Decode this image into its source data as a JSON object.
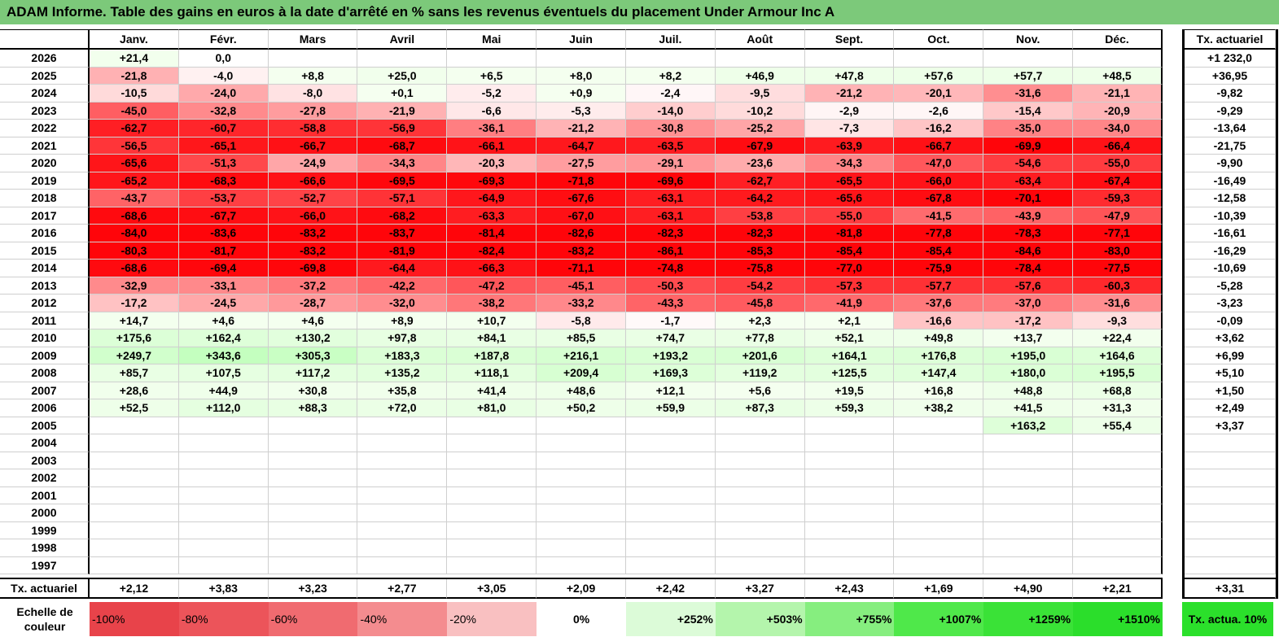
{
  "title": "ADAM Informe. Table des gains en euros à la date d'arrêté en % sans les revenus éventuels du placement Under Armour Inc A",
  "months": [
    "Janv.",
    "Févr.",
    "Mars",
    "Avril",
    "Mai",
    "Juin",
    "Juil.",
    "Août",
    "Sept.",
    "Oct.",
    "Nov.",
    "Déc."
  ],
  "tx_header": "Tx. actuariel",
  "rows": [
    {
      "year": "2026",
      "values": [
        "+21,4",
        "0,0",
        "",
        "",
        "",
        "",
        "",
        "",
        "",
        "",
        "",
        ""
      ],
      "tx": "+1 232,0"
    },
    {
      "year": "2025",
      "values": [
        "-21,8",
        "-4,0",
        "+8,8",
        "+25,0",
        "+6,5",
        "+8,0",
        "+8,2",
        "+46,9",
        "+47,8",
        "+57,6",
        "+57,7",
        "+48,5"
      ],
      "tx": "+36,95"
    },
    {
      "year": "2024",
      "values": [
        "-10,5",
        "-24,0",
        "-8,0",
        "+0,1",
        "-5,2",
        "+0,9",
        "-2,4",
        "-9,5",
        "-21,2",
        "-20,1",
        "-31,6",
        "-21,1"
      ],
      "tx": "-9,82"
    },
    {
      "year": "2023",
      "values": [
        "-45,0",
        "-32,8",
        "-27,8",
        "-21,9",
        "-6,6",
        "-5,3",
        "-14,0",
        "-10,2",
        "-2,9",
        "-2,6",
        "-15,4",
        "-20,9"
      ],
      "tx": "-9,29"
    },
    {
      "year": "2022",
      "values": [
        "-62,7",
        "-60,7",
        "-58,8",
        "-56,9",
        "-36,1",
        "-21,2",
        "-30,8",
        "-25,2",
        "-7,3",
        "-16,2",
        "-35,0",
        "-34,0"
      ],
      "tx": "-13,64"
    },
    {
      "year": "2021",
      "values": [
        "-56,5",
        "-65,1",
        "-66,7",
        "-68,7",
        "-66,1",
        "-64,7",
        "-63,5",
        "-67,9",
        "-63,9",
        "-66,7",
        "-69,9",
        "-66,4"
      ],
      "tx": "-21,75"
    },
    {
      "year": "2020",
      "values": [
        "-65,6",
        "-51,3",
        "-24,9",
        "-34,3",
        "-20,3",
        "-27,5",
        "-29,1",
        "-23,6",
        "-34,3",
        "-47,0",
        "-54,6",
        "-55,0"
      ],
      "tx": "-9,90"
    },
    {
      "year": "2019",
      "values": [
        "-65,2",
        "-68,3",
        "-66,6",
        "-69,5",
        "-69,3",
        "-71,8",
        "-69,6",
        "-62,7",
        "-65,5",
        "-66,0",
        "-63,4",
        "-67,4"
      ],
      "tx": "-16,49"
    },
    {
      "year": "2018",
      "values": [
        "-43,7",
        "-53,7",
        "-52,7",
        "-57,1",
        "-64,9",
        "-67,6",
        "-63,1",
        "-64,2",
        "-65,6",
        "-67,8",
        "-70,1",
        "-59,3"
      ],
      "tx": "-12,58"
    },
    {
      "year": "2017",
      "values": [
        "-68,6",
        "-67,7",
        "-66,0",
        "-68,2",
        "-63,3",
        "-67,0",
        "-63,1",
        "-53,8",
        "-55,0",
        "-41,5",
        "-43,9",
        "-47,9"
      ],
      "tx": "-10,39"
    },
    {
      "year": "2016",
      "values": [
        "-84,0",
        "-83,6",
        "-83,2",
        "-83,7",
        "-81,4",
        "-82,6",
        "-82,3",
        "-82,3",
        "-81,8",
        "-77,8",
        "-78,3",
        "-77,1"
      ],
      "tx": "-16,61"
    },
    {
      "year": "2015",
      "values": [
        "-80,3",
        "-81,7",
        "-83,2",
        "-81,9",
        "-82,4",
        "-83,2",
        "-86,1",
        "-85,3",
        "-85,4",
        "-85,4",
        "-84,6",
        "-83,0"
      ],
      "tx": "-16,29"
    },
    {
      "year": "2014",
      "values": [
        "-68,6",
        "-69,4",
        "-69,8",
        "-64,4",
        "-66,3",
        "-71,1",
        "-74,8",
        "-75,8",
        "-77,0",
        "-75,9",
        "-78,4",
        "-77,5"
      ],
      "tx": "-10,69"
    },
    {
      "year": "2013",
      "values": [
        "-32,9",
        "-33,1",
        "-37,2",
        "-42,2",
        "-47,2",
        "-45,1",
        "-50,3",
        "-54,2",
        "-57,3",
        "-57,7",
        "-57,6",
        "-60,3"
      ],
      "tx": "-5,28"
    },
    {
      "year": "2012",
      "values": [
        "-17,2",
        "-24,5",
        "-28,7",
        "-32,0",
        "-38,2",
        "-33,2",
        "-43,3",
        "-45,8",
        "-41,9",
        "-37,6",
        "-37,0",
        "-31,6"
      ],
      "tx": "-3,23"
    },
    {
      "year": "2011",
      "values": [
        "+14,7",
        "+4,6",
        "+4,6",
        "+8,9",
        "+10,7",
        "-5,8",
        "-1,7",
        "+2,3",
        "+2,1",
        "-16,6",
        "-17,2",
        "-9,3"
      ],
      "tx": "-0,09"
    },
    {
      "year": "2010",
      "values": [
        "+175,6",
        "+162,4",
        "+130,2",
        "+97,8",
        "+84,1",
        "+85,5",
        "+74,7",
        "+77,8",
        "+52,1",
        "+49,8",
        "+13,7",
        "+22,4"
      ],
      "tx": "+3,62"
    },
    {
      "year": "2009",
      "values": [
        "+249,7",
        "+343,6",
        "+305,3",
        "+183,3",
        "+187,8",
        "+216,1",
        "+193,2",
        "+201,6",
        "+164,1",
        "+176,8",
        "+195,0",
        "+164,6"
      ],
      "tx": "+6,99"
    },
    {
      "year": "2008",
      "values": [
        "+85,7",
        "+107,5",
        "+117,2",
        "+135,2",
        "+118,1",
        "+209,4",
        "+169,3",
        "+119,2",
        "+125,5",
        "+147,4",
        "+180,0",
        "+195,5"
      ],
      "tx": "+5,10"
    },
    {
      "year": "2007",
      "values": [
        "+28,6",
        "+44,9",
        "+30,8",
        "+35,8",
        "+41,4",
        "+48,6",
        "+12,1",
        "+5,6",
        "+19,5",
        "+16,8",
        "+48,8",
        "+68,8"
      ],
      "tx": "+1,50"
    },
    {
      "year": "2006",
      "values": [
        "+52,5",
        "+112,0",
        "+88,3",
        "+72,0",
        "+81,0",
        "+50,2",
        "+59,9",
        "+87,3",
        "+59,3",
        "+38,2",
        "+41,5",
        "+31,3"
      ],
      "tx": "+2,49"
    },
    {
      "year": "2005",
      "values": [
        "",
        "",
        "",
        "",
        "",
        "",
        "",
        "",
        "",
        "",
        "+163,2",
        "+55,4"
      ],
      "tx": "+3,37"
    },
    {
      "year": "2004",
      "values": [
        "",
        "",
        "",
        "",
        "",
        "",
        "",
        "",
        "",
        "",
        "",
        ""
      ],
      "tx": ""
    },
    {
      "year": "2003",
      "values": [
        "",
        "",
        "",
        "",
        "",
        "",
        "",
        "",
        "",
        "",
        "",
        ""
      ],
      "tx": ""
    },
    {
      "year": "2002",
      "values": [
        "",
        "",
        "",
        "",
        "",
        "",
        "",
        "",
        "",
        "",
        "",
        ""
      ],
      "tx": ""
    },
    {
      "year": "2001",
      "values": [
        "",
        "",
        "",
        "",
        "",
        "",
        "",
        "",
        "",
        "",
        "",
        ""
      ],
      "tx": ""
    },
    {
      "year": "2000",
      "values": [
        "",
        "",
        "",
        "",
        "",
        "",
        "",
        "",
        "",
        "",
        "",
        ""
      ],
      "tx": ""
    },
    {
      "year": "1999",
      "values": [
        "",
        "",
        "",
        "",
        "",
        "",
        "",
        "",
        "",
        "",
        "",
        ""
      ],
      "tx": ""
    },
    {
      "year": "1998",
      "values": [
        "",
        "",
        "",
        "",
        "",
        "",
        "",
        "",
        "",
        "",
        "",
        ""
      ],
      "tx": ""
    },
    {
      "year": "1997",
      "values": [
        "",
        "",
        "",
        "",
        "",
        "",
        "",
        "",
        "",
        "",
        "",
        ""
      ],
      "tx": ""
    }
  ],
  "footer": {
    "label": "Tx. actuariel",
    "values": [
      "+2,12",
      "+3,83",
      "+3,23",
      "+2,77",
      "+3,05",
      "+2,09",
      "+2,42",
      "+3,27",
      "+2,43",
      "+1,69",
      "+4,90",
      "+2,21"
    ],
    "tx": "+3,31"
  },
  "scale": {
    "label": "Echelle de couleur",
    "steps": [
      {
        "text": "-100%",
        "color": "#e8434a"
      },
      {
        "text": "-80%",
        "color": "#ec545a"
      },
      {
        "text": "-60%",
        "color": "#f06b70"
      },
      {
        "text": "-40%",
        "color": "#f48c8f"
      },
      {
        "text": "-20%",
        "color": "#f9c0c1"
      },
      {
        "text": "0%",
        "color": "#ffffff"
      },
      {
        "text": "+252%",
        "color": "#dcfbd8"
      },
      {
        "text": "+503%",
        "color": "#b4f5ac"
      },
      {
        "text": "+755%",
        "color": "#86ee7f"
      },
      {
        "text": "+1007%",
        "color": "#4fe84a"
      },
      {
        "text": "+1259%",
        "color": "#3ae237"
      },
      {
        "text": "+1510%",
        "color": "#2bde2b"
      }
    ],
    "tx_label": "Tx. actua. 10%",
    "tx_color": "#2be02b"
  }
}
